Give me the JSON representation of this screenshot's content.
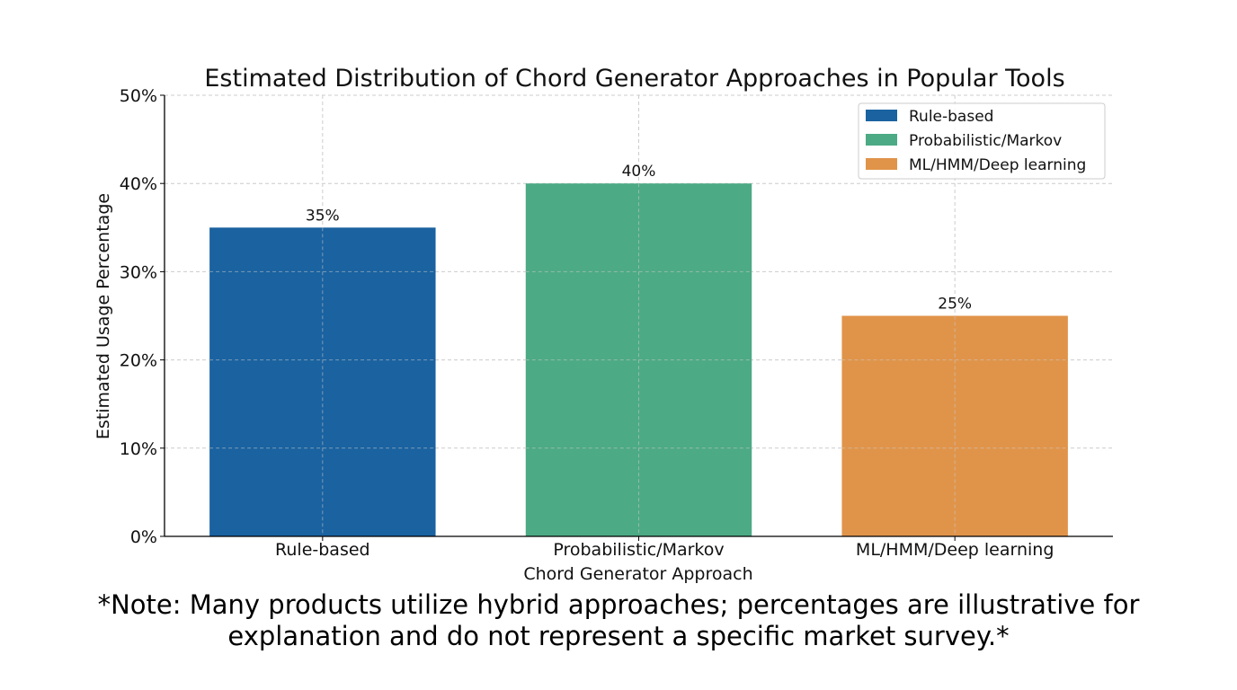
{
  "chart_data": {
    "type": "bar",
    "title": "Estimated Distribution of Chord Generator Approaches in Popular Tools",
    "xlabel": "Chord Generator Approach",
    "ylabel": "Estimated Usage Percentage",
    "categories": [
      "Rule-based",
      "Probabilistic/Markov",
      "ML/HMM/Deep learning"
    ],
    "values": [
      35,
      40,
      25
    ],
    "data_labels": [
      "35%",
      "40%",
      "25%"
    ],
    "colors": [
      "#1a62a0",
      "#4caa84",
      "#e0944a"
    ],
    "ylim": [
      0,
      50
    ],
    "y_ticks": [
      0,
      10,
      20,
      30,
      40,
      50
    ],
    "y_tick_labels": [
      "0%",
      "10%",
      "20%",
      "30%",
      "40%",
      "50%"
    ],
    "grid": true,
    "legend": {
      "position": "top-right",
      "entries": [
        "Rule-based",
        "Probabilistic/Markov",
        "ML/HMM/Deep learning"
      ]
    }
  },
  "note": {
    "line1": "*Note: Many products utilize hybrid approaches; percentages are illustrative for",
    "line2": "explanation and do not represent a specific market survey.*"
  }
}
